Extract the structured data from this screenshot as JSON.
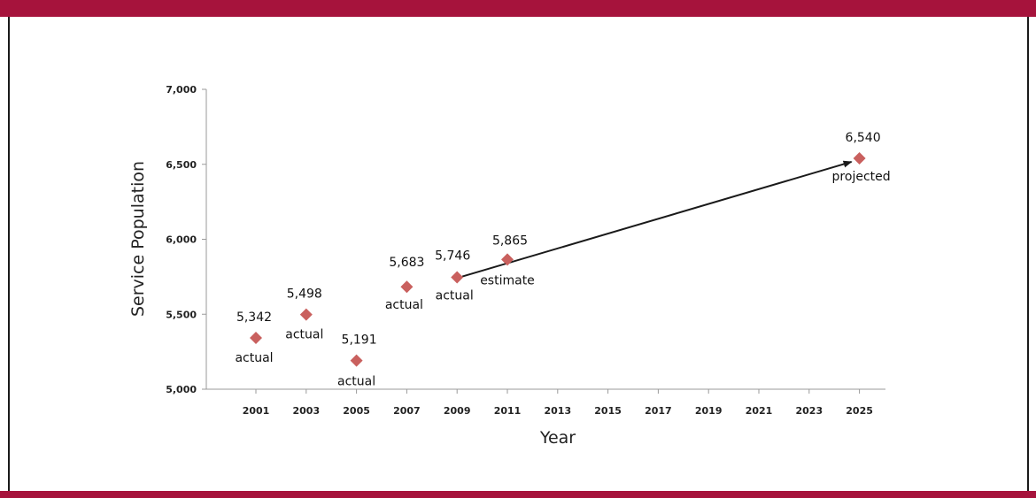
{
  "colors": {
    "frame": "#a6133c",
    "marker": "#c9605e",
    "arrow": "#1a1a1a",
    "axis": "#9a9a9a"
  },
  "chart_data": {
    "type": "scatter",
    "xlabel": "Year",
    "ylabel": "Service Population",
    "xlim": [
      1999,
      2027
    ],
    "ylim": [
      5000,
      7000
    ],
    "xticks": [
      2001,
      2003,
      2005,
      2007,
      2009,
      2011,
      2013,
      2015,
      2017,
      2019,
      2021,
      2023,
      2025
    ],
    "yticks": [
      {
        "value": 5000,
        "label": "5,000"
      },
      {
        "value": 5500,
        "label": "5,500"
      },
      {
        "value": 6000,
        "label": "6,000"
      },
      {
        "value": 6500,
        "label": "6,500"
      },
      {
        "value": 7000,
        "label": "7,000"
      }
    ],
    "points": [
      {
        "x": 2001,
        "y": 5342,
        "label": "5,342",
        "note": "actual"
      },
      {
        "x": 2003,
        "y": 5498,
        "label": "5,498",
        "note": "actual"
      },
      {
        "x": 2005,
        "y": 5191,
        "label": "5,191",
        "note": "actual"
      },
      {
        "x": 2007,
        "y": 5683,
        "label": "5,683",
        "note": "actual"
      },
      {
        "x": 2009,
        "y": 5746,
        "label": "5,746",
        "note": "actual"
      },
      {
        "x": 2011,
        "y": 5865,
        "label": "5,865",
        "note": "estimate"
      },
      {
        "x": 2025,
        "y": 6540,
        "label": "6,540",
        "note": "projected"
      }
    ],
    "arrow": {
      "from": {
        "x": 2009,
        "y": 5746
      },
      "to": {
        "x": 2025,
        "y": 6540
      }
    },
    "grid": false,
    "legend": "none"
  }
}
